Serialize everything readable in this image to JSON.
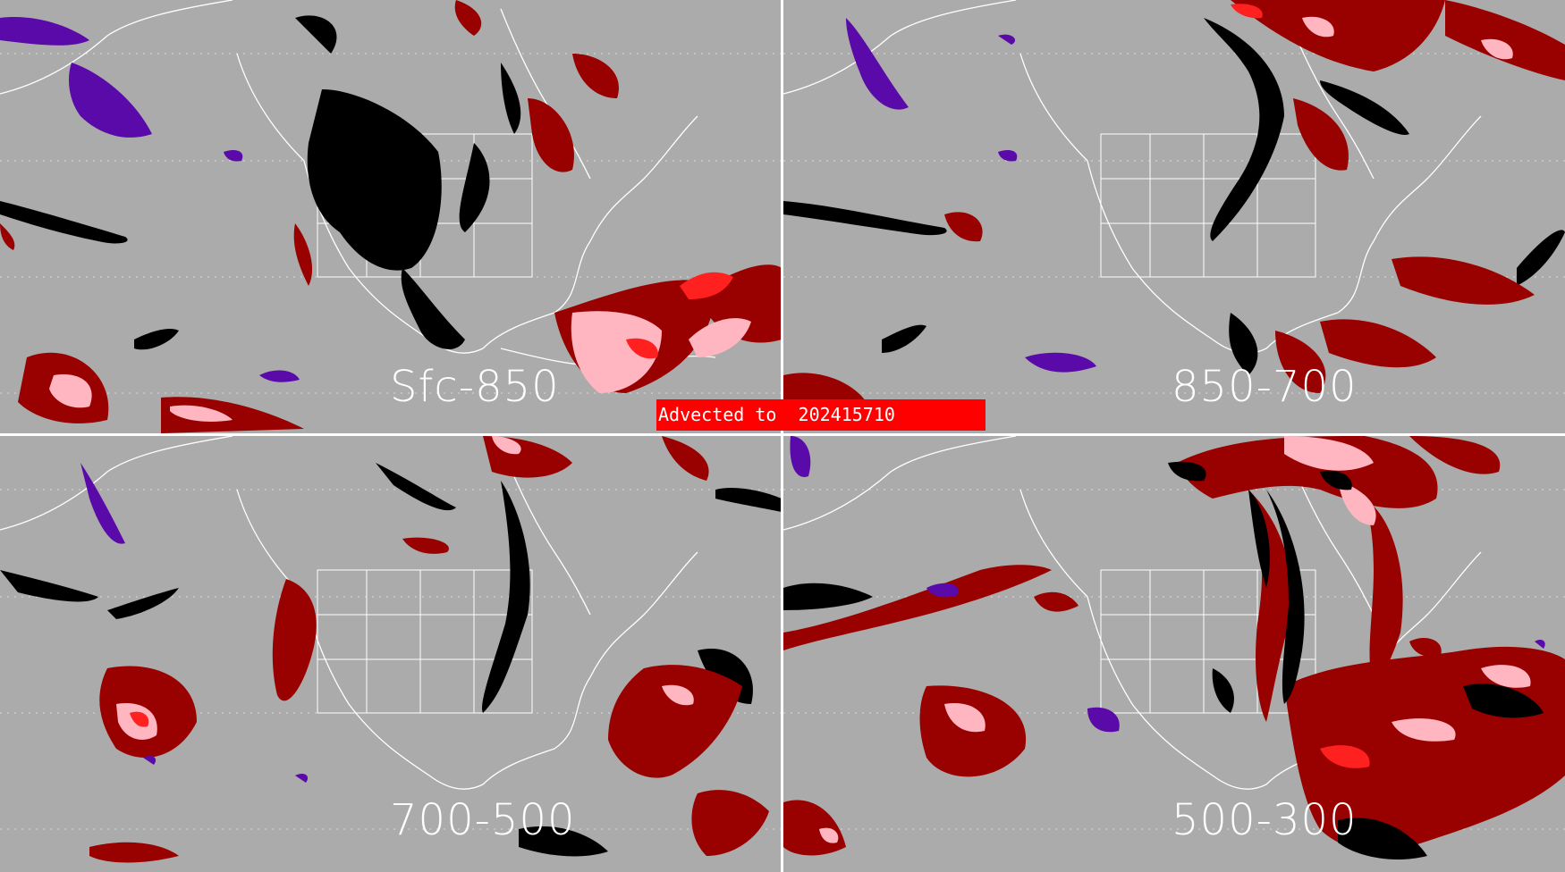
{
  "panels": [
    {
      "label": "Sfc-850"
    },
    {
      "label": "850-700"
    },
    {
      "label": "700-500"
    },
    {
      "label": "500-300"
    }
  ],
  "banner": {
    "text": "Advected to  202415710"
  },
  "colors": {
    "background": "#ababab",
    "land_outline": "#ffffff",
    "black_layer": "#000000",
    "dark_red_layer": "#990000",
    "pink_layer": "#ffb6c1",
    "red_layer": "#ff2020",
    "purple_layer": "#5a0aa8",
    "banner": "#ff0000"
  }
}
